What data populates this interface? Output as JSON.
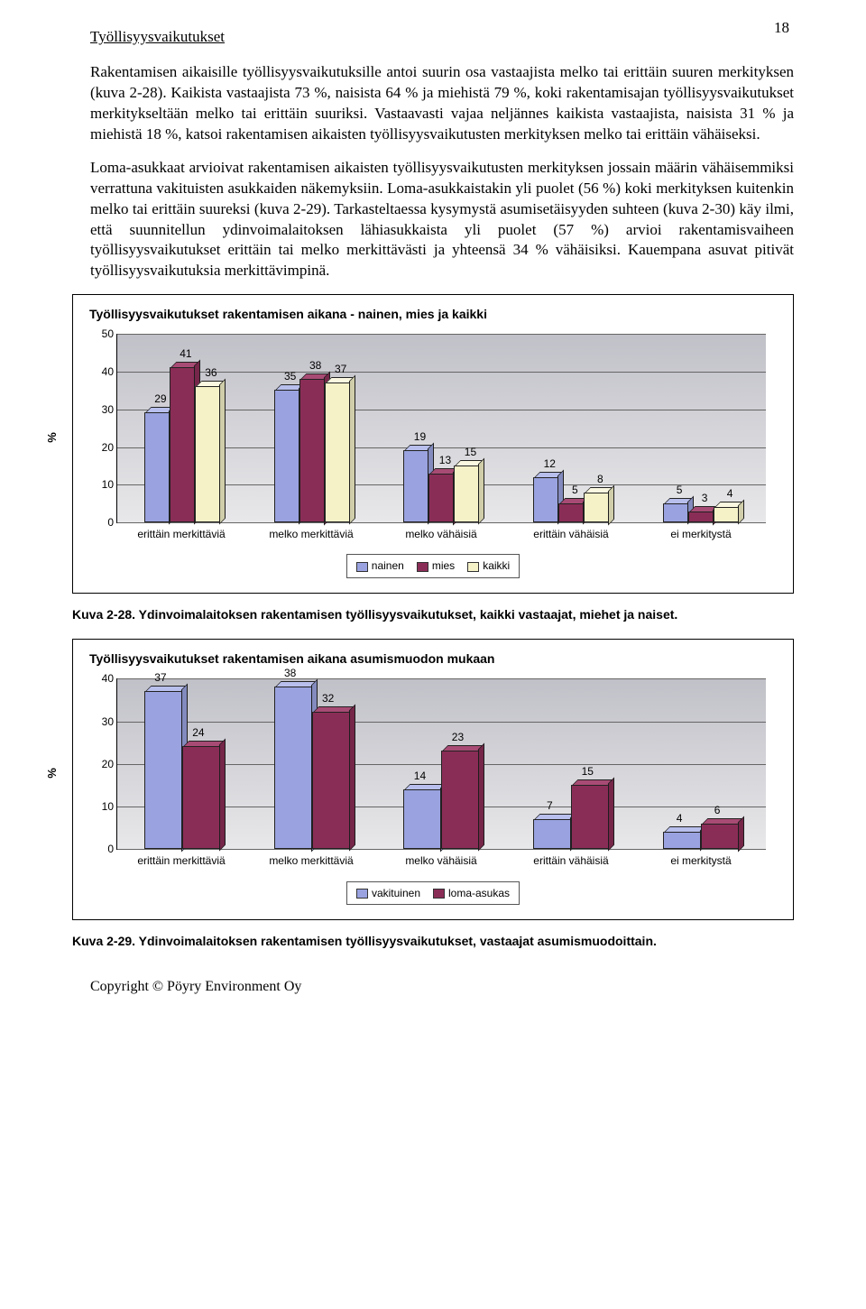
{
  "page_number": "18",
  "section_title": "Työllisyysvaikutukset",
  "paragraphs": {
    "p1": "Rakentamisen aikaisille työllisyysvaikutuksille antoi suurin osa vastaajista melko tai erittäin suuren merkityksen (kuva 2-28). Kaikista vastaajista 73 %, naisista 64 % ja miehistä 79 %, koki rakentamisajan työllisyysvaikutukset merkitykseltään melko tai erittäin suuriksi. Vastaavasti vajaa neljännes kaikista vastaajista, naisista 31 % ja miehistä 18 %, katsoi rakentamisen aikaisten työllisyysvaikutusten merkityksen melko tai erittäin vähäiseksi.",
    "p2": "Loma-asukkaat arvioivat rakentamisen aikaisten työllisyysvaikutusten merkityksen jossain määrin vähäisemmiksi verrattuna vakituisten asukkaiden näkemyksiin. Loma-asukkaistakin yli puolet (56 %) koki merkityksen kuitenkin melko tai erittäin suureksi (kuva 2-29). Tarkasteltaessa kysymystä asumisetäisyyden suhteen (kuva 2-30) käy ilmi, että suunnitellun ydinvoimalaitoksen lähiasukkaista yli puolet (57 %) arvioi rakentamisvaiheen työllisyysvaikutukset erittäin tai melko merkittävästi ja yhteensä 34 % vähäisiksi. Kauempana asuvat pitivät työllisyysvaikutuksia merkittävimpinä."
  },
  "chart1": {
    "title": "Työllisyysvaikutukset rakentamisen aikana - nainen, mies ja kaikki",
    "ylabel": "%",
    "ymax": 50,
    "ytick_step": 10,
    "categories": [
      "erittäin merkittäviä",
      "melko merkittäviä",
      "melko vähäisiä",
      "erittäin vähäisiä",
      "ei merkitystä"
    ],
    "series": [
      {
        "name": "nainen",
        "color": "#9aa3e0",
        "color_top": "#b8bfec",
        "values": [
          29,
          35,
          19,
          12,
          5
        ]
      },
      {
        "name": "mies",
        "color": "#8a2d56",
        "color_top": "#a84b74",
        "values": [
          41,
          38,
          13,
          5,
          3
        ]
      },
      {
        "name": "kaikki",
        "color": "#f5f2c8",
        "color_top": "#faf8e0",
        "values": [
          36,
          37,
          15,
          8,
          4
        ]
      }
    ],
    "legend": [
      "nainen",
      "mies",
      "kaikki"
    ],
    "grid_color": "#666666",
    "background": "#d8d8de"
  },
  "caption1": "Kuva 2-28. Ydinvoimalaitoksen rakentamisen työllisyysvaikutukset, kaikki vastaajat, miehet ja naiset.",
  "chart2": {
    "title": "Työllisyysvaikutukset rakentamisen aikana asumismuodon mukaan",
    "ylabel": "%",
    "ymax": 40,
    "ytick_step": 10,
    "categories": [
      "erittäin merkittäviä",
      "melko merkittäviä",
      "melko vähäisiä",
      "erittäin vähäisiä",
      "ei merkitystä"
    ],
    "series": [
      {
        "name": "vakituinen",
        "color": "#9aa3e0",
        "color_top": "#b8bfec",
        "values": [
          37,
          38,
          14,
          7,
          4
        ]
      },
      {
        "name": "loma-asukas",
        "color": "#8a2d56",
        "color_top": "#a84b74",
        "values": [
          24,
          32,
          23,
          15,
          6
        ]
      }
    ],
    "legend": [
      "vakituinen",
      "loma-asukas"
    ],
    "grid_color": "#666666",
    "background": "#d8d8de"
  },
  "caption2": "Kuva 2-29. Ydinvoimalaitoksen rakentamisen työllisyysvaikutukset, vastaajat asumismuodoittain.",
  "footer": "Copyright © Pöyry Environment Oy"
}
